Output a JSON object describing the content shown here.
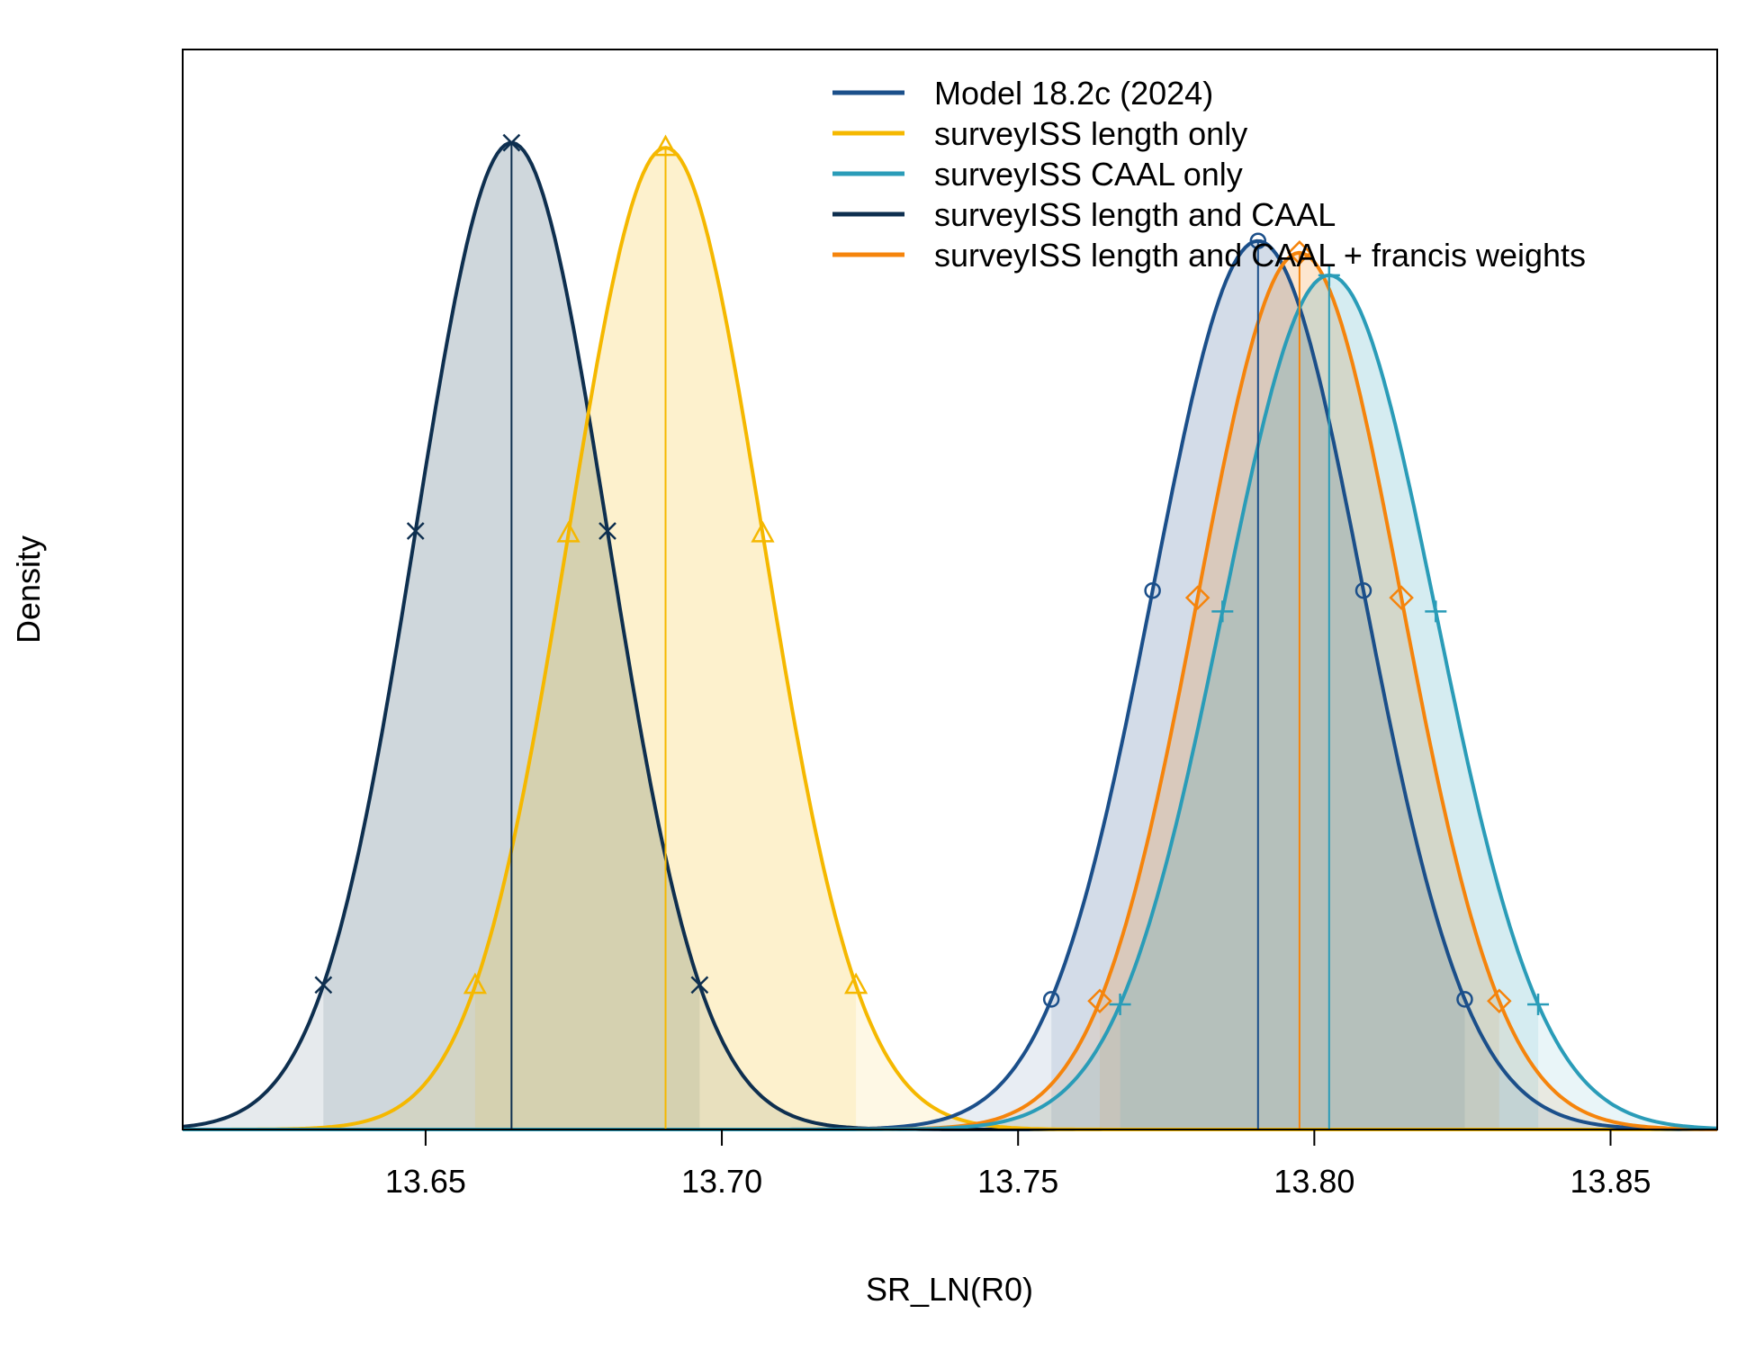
{
  "chart_data": {
    "type": "line",
    "title": "",
    "xlabel": "SR_LN(R0)",
    "ylabel": "Density",
    "xlim": [
      13.609,
      13.868
    ],
    "ylim": [
      0,
      1.1
    ],
    "x_ticks": [
      13.65,
      13.7,
      13.75,
      13.8,
      13.85
    ],
    "x_tick_labels": [
      "13.65",
      "13.70",
      "13.75",
      "13.80",
      "13.85"
    ],
    "y_ticks_shown": false,
    "legend_position": "top-right",
    "grid": false,
    "series": [
      {
        "name": "Model 18.2c (2024)",
        "color": "#1b4f8a",
        "mean": 13.7905,
        "sd": 0.0178,
        "peak": 0.905,
        "marker": "circle"
      },
      {
        "name": "surveyISS length only",
        "color": "#f5b800",
        "mean": 13.6905,
        "sd": 0.0164,
        "peak": 1.0,
        "marker": "triangle"
      },
      {
        "name": "surveyISS CAAL only",
        "color": "#2a9cb8",
        "mean": 13.8025,
        "sd": 0.018,
        "peak": 0.87,
        "marker": "plus"
      },
      {
        "name": "surveyISS length and CAAL",
        "color": "#0e2f4f",
        "mean": 13.6645,
        "sd": 0.0162,
        "peak": 1.005,
        "marker": "x"
      },
      {
        "name": "surveyISS length and CAAL + francis weights",
        "color": "#f5840c",
        "mean": 13.7975,
        "sd": 0.0172,
        "peak": 0.893,
        "marker": "diamond"
      }
    ]
  }
}
